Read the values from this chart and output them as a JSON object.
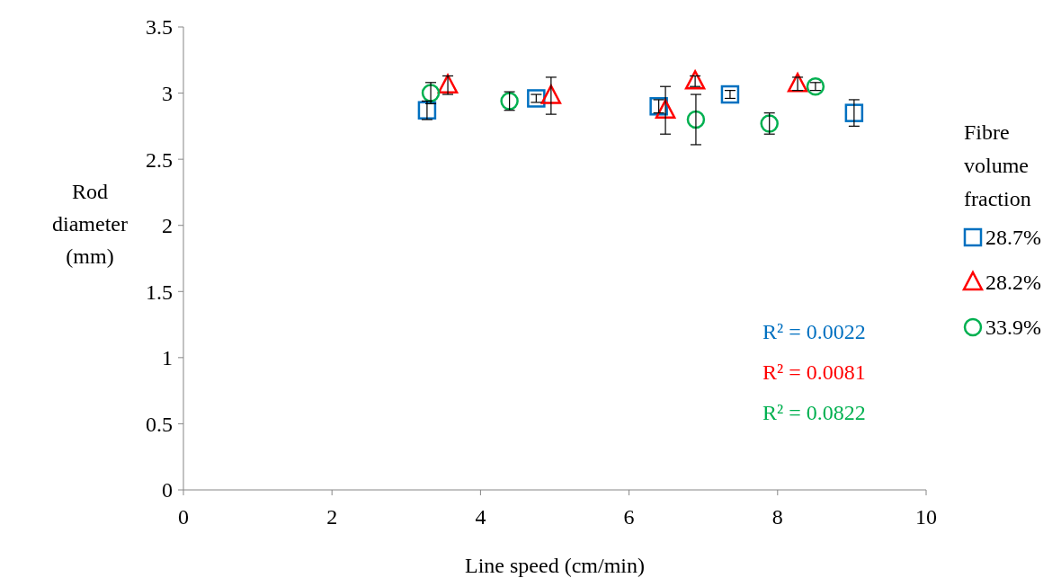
{
  "chart_data": {
    "type": "scatter",
    "xlabel": "Line speed (cm/min)",
    "ylabel": "Rod diameter (mm)",
    "legend_title": "Fibre volume fraction",
    "legend": "right",
    "grid": false,
    "xlim": [
      0,
      10
    ],
    "xticks": [
      0,
      2,
      4,
      6,
      8,
      10
    ],
    "ylim": [
      0,
      3.5
    ],
    "yticks": [
      0,
      0.5,
      1,
      1.5,
      2,
      2.5,
      3,
      3.5
    ],
    "series": [
      {
        "name": "28.7%",
        "color": "#0070c0",
        "marker": "square",
        "x": [
          3.28,
          4.75,
          6.4,
          7.36,
          9.03
        ],
        "values": [
          2.87,
          2.96,
          2.9,
          2.99,
          2.85
        ],
        "errors": [
          0.07,
          0.03,
          0.05,
          0.03,
          0.1
        ]
      },
      {
        "name": "28.2%",
        "color": "#ff0000",
        "marker": "triangle",
        "x": [
          3.56,
          4.95,
          6.49,
          6.89,
          8.27
        ],
        "values": [
          3.06,
          2.98,
          2.87,
          3.09,
          3.07
        ],
        "errors": [
          0.07,
          0.14,
          0.18,
          0.04,
          0.05
        ]
      },
      {
        "name": "33.9%",
        "color": "#00b050",
        "marker": "circle",
        "x": [
          3.33,
          4.39,
          6.9,
          7.89,
          8.51
        ],
        "values": [
          3.0,
          2.94,
          2.8,
          2.77,
          3.05
        ],
        "errors": [
          0.08,
          0.07,
          0.19,
          0.08,
          0.03
        ]
      }
    ],
    "annotations": [
      "R² = 0.0022",
      "R² = 0.0081",
      "R² = 0.0822"
    ]
  }
}
